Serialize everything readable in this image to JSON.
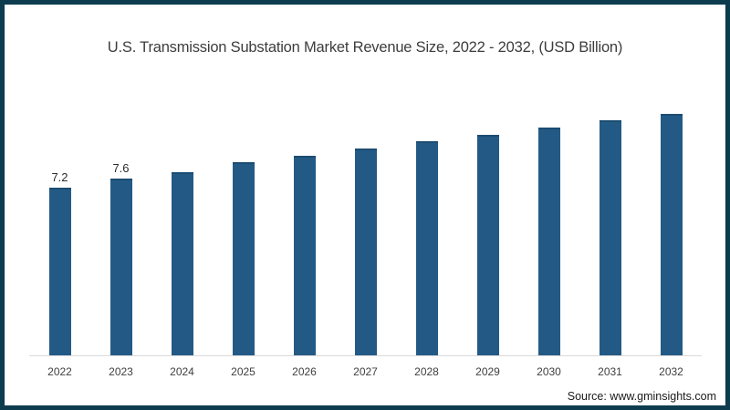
{
  "title": "U.S. Transmission Substation Market Revenue Size, 2022 - 2032, (USD Billion)",
  "source": "Source: www.gminsights.com",
  "colors": {
    "bar": "#235a85",
    "bar_top_edge": "#1c4c72",
    "frame_border": "#0e3c4f",
    "axis_line": "#d9d9d9",
    "title_text": "#3d3d3d"
  },
  "chart_data": {
    "type": "bar",
    "title": "U.S. Transmission Substation Market Revenue Size, 2022 - 2032, (USD Billion)",
    "categories": [
      "2022",
      "2023",
      "2024",
      "2025",
      "2026",
      "2027",
      "2028",
      "2029",
      "2030",
      "2031",
      "2032"
    ],
    "values": [
      7.2,
      7.6,
      7.9,
      8.3,
      8.6,
      8.9,
      9.2,
      9.5,
      9.8,
      10.1,
      10.4
    ],
    "data_labels": [
      "7.2",
      "7.6",
      "",
      "",
      "",
      "",
      "",
      "",
      "",
      "",
      ""
    ],
    "xlabel": "",
    "ylabel": "",
    "ylim": [
      0,
      11
    ],
    "grid": false,
    "legend": false,
    "bar_color": "#235a85"
  }
}
